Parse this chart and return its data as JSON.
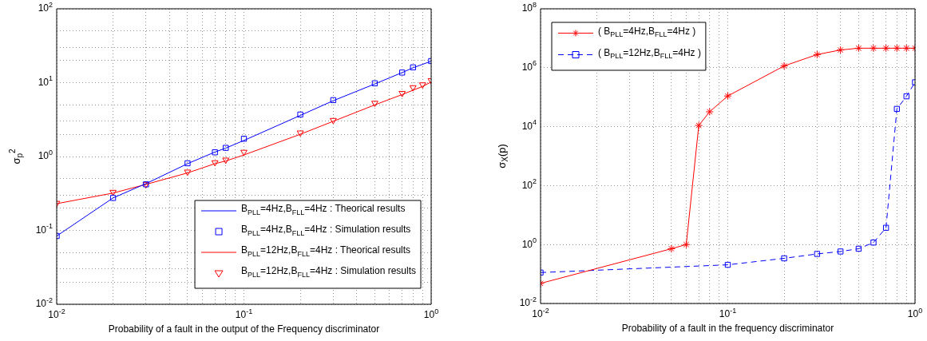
{
  "chart_data": [
    {
      "type": "line",
      "xlabel": "Probability of a fault in the output of the Frequency discriminator",
      "ylabel": "σ$_{p}$$^{2}$",
      "log": "xy",
      "grid": true,
      "legend": "bottom right",
      "xlim": [
        0.01,
        1
      ],
      "ylim": [
        0.01,
        100
      ],
      "xticks": [
        {
          "value": 0.01,
          "label": "10$^{-2}$"
        },
        {
          "value": 0.02,
          "label": null
        },
        {
          "value": 0.03,
          "label": null
        },
        {
          "value": 0.04,
          "label": null
        },
        {
          "value": 0.05,
          "label": null
        },
        {
          "value": 0.06,
          "label": null
        },
        {
          "value": 0.07,
          "label": null
        },
        {
          "value": 0.08,
          "label": null
        },
        {
          "value": 0.09,
          "label": null
        },
        {
          "value": 0.1,
          "label": "10$^{-1}$"
        },
        {
          "value": 0.2,
          "label": null
        },
        {
          "value": 0.3,
          "label": null
        },
        {
          "value": 0.4,
          "label": null
        },
        {
          "value": 0.5,
          "label": null
        },
        {
          "value": 0.6,
          "label": null
        },
        {
          "value": 0.7,
          "label": null
        },
        {
          "value": 0.8,
          "label": null
        },
        {
          "value": 0.9,
          "label": null
        },
        {
          "value": 1,
          "label": "10$^{0}$"
        }
      ],
      "yticks": [
        {
          "value": 0.01,
          "label": "10$^{-2}$"
        },
        {
          "value": 0.02,
          "label": null
        },
        {
          "value": 0.03,
          "label": null
        },
        {
          "value": 0.05,
          "label": null
        },
        {
          "value": 0.1,
          "label": "10$^{-1}$"
        },
        {
          "value": 0.2,
          "label": null
        },
        {
          "value": 0.3,
          "label": null
        },
        {
          "value": 0.5,
          "label": null
        },
        {
          "value": 1,
          "label": "10$^{0}$"
        },
        {
          "value": 2,
          "label": null
        },
        {
          "value": 3,
          "label": null
        },
        {
          "value": 5,
          "label": null
        },
        {
          "value": 10,
          "label": "10$^{1}$"
        },
        {
          "value": 20,
          "label": null
        },
        {
          "value": 30,
          "label": null
        },
        {
          "value": 50,
          "label": null
        },
        {
          "value": 100,
          "label": "10$^{2}$"
        }
      ],
      "series": [
        {
          "name": "B$_{PLL}$=4Hz,B$_{FLL}$=4Hz : Theorical results",
          "type": "line",
          "marker": "none",
          "color": "#0000ff",
          "x": [
            0.01,
            0.02,
            0.03,
            0.05,
            0.07,
            0.08,
            0.1,
            0.2,
            0.3,
            0.5,
            0.7,
            0.8,
            1
          ],
          "values": [
            0.084,
            0.275,
            0.43,
            0.8,
            1.15,
            1.3,
            1.65,
            3.6,
            5.7,
            9.6,
            13.7,
            15.9,
            19.5
          ]
        },
        {
          "name": "B$_{PLL}$=4Hz,B$_{FLL}$=4Hz : Simulation results",
          "type": "scatter",
          "marker": "square",
          "color": "#0000ff",
          "x": [
            0.01,
            0.02,
            0.03,
            0.05,
            0.07,
            0.08,
            0.1,
            0.2,
            0.3,
            0.5,
            0.7,
            0.8,
            1
          ],
          "values": [
            0.084,
            0.275,
            0.42,
            0.81,
            1.14,
            1.31,
            1.74,
            3.7,
            5.8,
            9.8,
            13.7,
            16.1,
            19.6
          ]
        },
        {
          "name": "B$_{PLL}$=12Hz,B$_{FLL}$=4Hz : Theorical results",
          "type": "line",
          "marker": "none",
          "color": "#ff0000",
          "x": [
            0.01,
            0.02,
            0.03,
            0.05,
            0.07,
            0.08,
            0.1,
            0.2,
            0.3,
            0.5,
            0.7,
            0.8,
            0.9,
            1
          ],
          "values": [
            0.23,
            0.32,
            0.42,
            0.6,
            0.8,
            0.87,
            1.05,
            2.0,
            3.0,
            5.0,
            6.9,
            7.9,
            8.9,
            10.2
          ]
        },
        {
          "name": "B$_{PLL}$=12Hz,B$_{FLL}$=4Hz : Simulation results",
          "type": "scatter",
          "marker": "triangle",
          "color": "#ff0000",
          "x": [
            0.01,
            0.02,
            0.03,
            0.05,
            0.07,
            0.08,
            0.1,
            0.2,
            0.3,
            0.5,
            0.7,
            0.8,
            0.9,
            1
          ],
          "values": [
            0.234,
            0.33,
            0.42,
            0.62,
            0.83,
            0.9,
            1.15,
            2.1,
            3.1,
            5.3,
            7.2,
            8.6,
            9.4,
            10.7
          ]
        }
      ]
    },
    {
      "type": "line",
      "xlabel": "Probability of a fault in the frequency discriminator",
      "ylabel": "σ$_{X}$(p)",
      "log": "xy",
      "grid": true,
      "legend": "top left",
      "xlim": [
        0.01,
        1
      ],
      "ylim": [
        0.01,
        100000000
      ],
      "xticks": [
        {
          "value": 0.01,
          "label": "10$^{-2}$"
        },
        {
          "value": 0.02,
          "label": null
        },
        {
          "value": 0.03,
          "label": null
        },
        {
          "value": 0.04,
          "label": null
        },
        {
          "value": 0.05,
          "label": null
        },
        {
          "value": 0.06,
          "label": null
        },
        {
          "value": 0.07,
          "label": null
        },
        {
          "value": 0.08,
          "label": null
        },
        {
          "value": 0.09,
          "label": null
        },
        {
          "value": 0.1,
          "label": "10$^{-1}$"
        },
        {
          "value": 0.2,
          "label": null
        },
        {
          "value": 0.3,
          "label": null
        },
        {
          "value": 0.4,
          "label": null
        },
        {
          "value": 0.5,
          "label": null
        },
        {
          "value": 0.6,
          "label": null
        },
        {
          "value": 0.7,
          "label": null
        },
        {
          "value": 0.8,
          "label": null
        },
        {
          "value": 0.9,
          "label": null
        },
        {
          "value": 1,
          "label": "10$^{0}$"
        }
      ],
      "yticks": [
        {
          "value": 0.01,
          "label": "10$^{-2}$"
        },
        {
          "value": 1,
          "label": "10$^{0}$"
        },
        {
          "value": 100,
          "label": "10$^{2}$"
        },
        {
          "value": 10000,
          "label": "10$^{4}$"
        },
        {
          "value": 1000000,
          "label": "10$^{6}$"
        },
        {
          "value": 100000000,
          "label": "10$^{8}$"
        }
      ],
      "series": [
        {
          "name": "( B$_{PLL}$=4Hz,B$_{FLL}$=4Hz )",
          "type": "line",
          "marker": "cross",
          "line_style": "solid",
          "color": "#ff0000",
          "x": [
            0.01,
            0.05,
            0.06,
            0.07,
            0.08,
            0.1,
            0.2,
            0.3,
            0.4,
            0.5,
            0.6,
            0.7,
            0.8,
            0.9,
            1
          ],
          "values": [
            0.048,
            0.72,
            1.0,
            11000,
            32000,
            110000,
            1150000,
            2800000,
            4000000,
            4600000,
            4600000,
            4600000,
            4600000,
            4600000,
            4600000
          ]
        },
        {
          "name": "( B$_{PLL}$=12Hz,B$_{FLL}$=4Hz )",
          "type": "line",
          "marker": "square",
          "line_style": "dashed",
          "color": "#0000ff",
          "x": [
            0.01,
            0.1,
            0.2,
            0.3,
            0.4,
            0.5,
            0.6,
            0.7,
            0.8,
            0.9,
            1
          ],
          "values": [
            0.112,
            0.205,
            0.34,
            0.48,
            0.58,
            0.72,
            1.17,
            3.7,
            40000,
            107000,
            320000
          ]
        }
      ]
    }
  ]
}
